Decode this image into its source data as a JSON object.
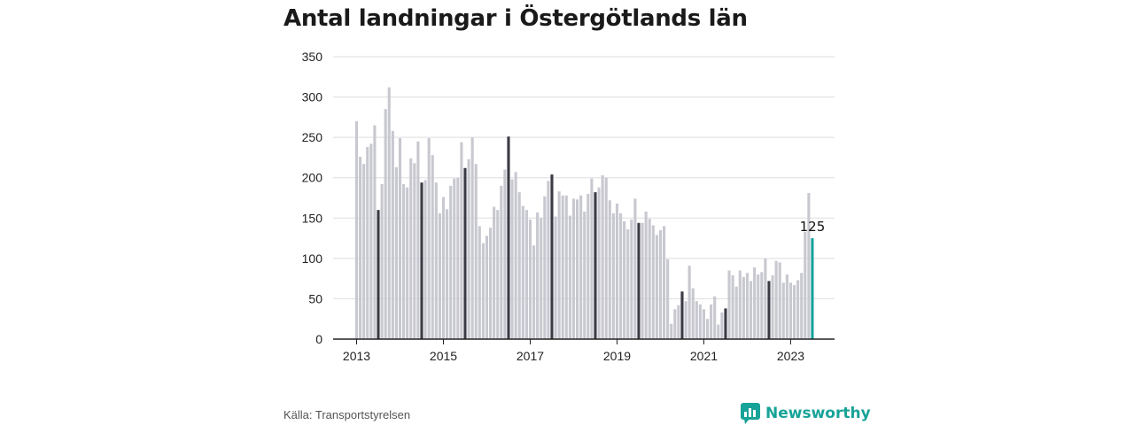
{
  "title": "Antal landningar i Östergötlands län",
  "source": "Källa: Transportstyrelsen",
  "brand": {
    "name": "Newsworthy",
    "icon": "newsworthy-logo-icon"
  },
  "colors": {
    "bar": "#c8c8d0",
    "highlight_bar": "#3a3a44",
    "latest_bar": "#14a39a",
    "grid": "#dddddd",
    "axis": "#222222"
  },
  "chart_data": {
    "type": "bar",
    "title": "Antal landningar i Östergötlands län",
    "xlabel": "",
    "ylabel": "",
    "ylim": [
      0,
      350
    ],
    "yticks": [
      "0",
      "50",
      "100",
      "150",
      "200",
      "250",
      "300",
      "350"
    ],
    "xticks": [
      "2013",
      "2015",
      "2017",
      "2019",
      "2021",
      "2023"
    ],
    "grid": true,
    "start": "2013-01",
    "highlight_month": 7,
    "annotation": {
      "month": "2023-07",
      "label": "125"
    },
    "values": [
      270,
      226,
      217,
      238,
      242,
      265,
      160,
      192,
      285,
      312,
      258,
      213,
      249,
      192,
      188,
      224,
      218,
      245,
      194,
      197,
      249,
      228,
      194,
      156,
      176,
      161,
      190,
      199,
      200,
      244,
      212,
      223,
      250,
      217,
      140,
      119,
      128,
      138,
      164,
      160,
      190,
      210,
      251,
      198,
      207,
      182,
      165,
      160,
      148,
      116,
      157,
      150,
      177,
      196,
      204,
      152,
      183,
      178,
      178,
      153,
      174,
      173,
      178,
      158,
      180,
      199,
      182,
      188,
      203,
      200,
      172,
      156,
      168,
      156,
      146,
      136,
      148,
      174,
      144,
      144,
      158,
      149,
      141,
      129,
      135,
      140,
      99,
      19,
      37,
      42,
      59,
      47,
      91,
      63,
      47,
      43,
      37,
      25,
      43,
      53,
      18,
      33,
      38,
      85,
      79,
      65,
      85,
      77,
      82,
      72,
      89,
      80,
      83,
      100,
      72,
      79,
      97,
      95,
      70,
      80,
      70,
      67,
      73,
      82,
      133,
      181,
      125
    ]
  }
}
